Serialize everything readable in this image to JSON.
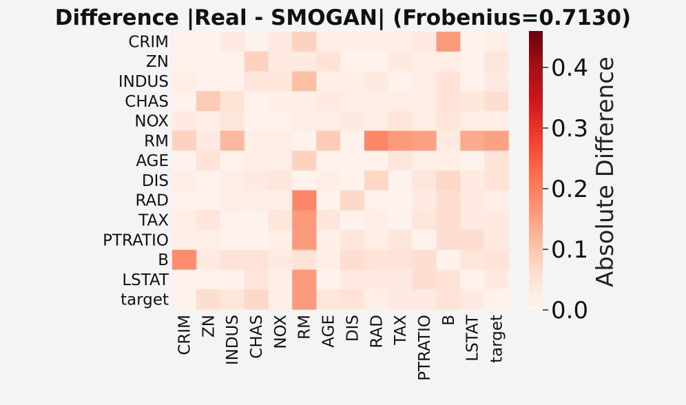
{
  "chart_data": {
    "type": "heatmap",
    "title": "Difference |Real - SMOGAN| (Frobenius=0.7130)",
    "row_labels": [
      "CRIM",
      "ZN",
      "INDUS",
      "CHAS",
      "NOX",
      "RM",
      "AGE",
      "DIS",
      "RAD",
      "TAX",
      "PTRATIO",
      "B",
      "LSTAT",
      "target"
    ],
    "col_labels": [
      "CRIM",
      "ZN",
      "INDUS",
      "CHAS",
      "NOX",
      "RM",
      "AGE",
      "DIS",
      "RAD",
      "TAX",
      "PTRATIO",
      "B",
      "LSTAT",
      "target"
    ],
    "values": [
      [
        0.01,
        0.01,
        0.03,
        0.01,
        0.03,
        0.08,
        0.02,
        0.02,
        0.02,
        0.02,
        0.03,
        0.16,
        0.01,
        0.02
      ],
      [
        0.01,
        0.01,
        0.01,
        0.08,
        0.03,
        0.03,
        0.05,
        0.01,
        0.01,
        0.03,
        0.02,
        0.02,
        0.01,
        0.04
      ],
      [
        0.02,
        0.01,
        0.01,
        0.04,
        0.04,
        0.11,
        0.02,
        0.02,
        0.03,
        0.01,
        0.02,
        0.05,
        0.01,
        0.03
      ],
      [
        0.01,
        0.09,
        0.05,
        0.01,
        0.02,
        0.02,
        0.03,
        0.02,
        0.02,
        0.02,
        0.02,
        0.05,
        0.04,
        0.06
      ],
      [
        0.03,
        0.02,
        0.04,
        0.01,
        0.01,
        0.02,
        0.02,
        0.03,
        0.02,
        0.04,
        0.02,
        0.04,
        0.02,
        0.02
      ],
      [
        0.08,
        0.03,
        0.12,
        0.02,
        0.02,
        0.01,
        0.09,
        0.01,
        0.19,
        0.16,
        0.15,
        0.03,
        0.14,
        0.15
      ],
      [
        0.01,
        0.05,
        0.01,
        0.02,
        0.02,
        0.08,
        0.01,
        0.01,
        0.01,
        0.04,
        0.02,
        0.02,
        0.01,
        0.05
      ],
      [
        0.02,
        0.01,
        0.02,
        0.03,
        0.04,
        0.01,
        0.02,
        0.01,
        0.07,
        0.01,
        0.04,
        0.07,
        0.03,
        0.05
      ],
      [
        0.01,
        0.01,
        0.02,
        0.02,
        0.02,
        0.19,
        0.01,
        0.07,
        0.01,
        0.01,
        0.03,
        0.06,
        0.03,
        0.02
      ],
      [
        0.02,
        0.04,
        0.01,
        0.01,
        0.04,
        0.16,
        0.04,
        0.01,
        0.02,
        0.01,
        0.04,
        0.06,
        0.03,
        0.03
      ],
      [
        0.02,
        0.02,
        0.01,
        0.01,
        0.02,
        0.16,
        0.02,
        0.04,
        0.02,
        0.04,
        0.01,
        0.06,
        0.06,
        0.03
      ],
      [
        0.18,
        0.03,
        0.05,
        0.05,
        0.03,
        0.05,
        0.02,
        0.06,
        0.05,
        0.05,
        0.06,
        0.01,
        0.04,
        0.05
      ],
      [
        0.01,
        0.01,
        0.01,
        0.04,
        0.02,
        0.16,
        0.01,
        0.03,
        0.03,
        0.03,
        0.06,
        0.05,
        0.01,
        0.03
      ],
      [
        0.01,
        0.06,
        0.04,
        0.07,
        0.02,
        0.16,
        0.04,
        0.05,
        0.02,
        0.03,
        0.03,
        0.05,
        0.03,
        0.01
      ]
    ],
    "colorbar": {
      "label": "Absolute Difference",
      "range": [
        0,
        0.46
      ],
      "ticks": [
        "0.0",
        "0.1",
        "0.2",
        "0.3",
        "0.4"
      ],
      "tick_values": [
        0,
        0.1,
        0.2,
        0.3,
        0.4
      ],
      "colormap": "Reds"
    }
  }
}
